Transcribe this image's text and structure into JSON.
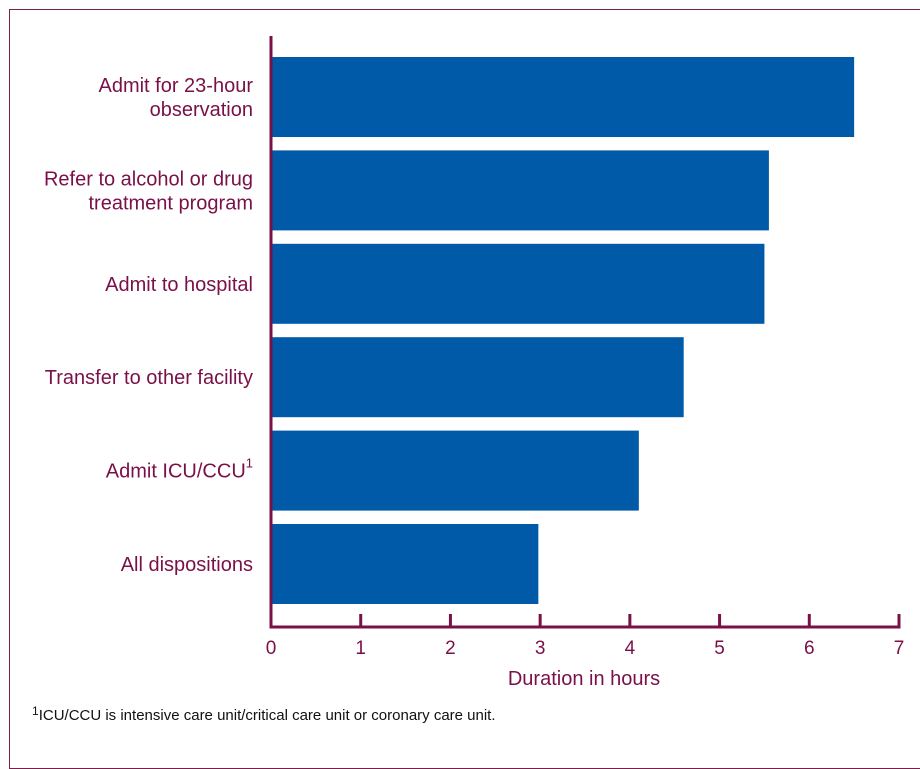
{
  "chart_data": {
    "type": "bar",
    "orientation": "horizontal",
    "categories": [
      {
        "lines": [
          "Admit for 23-hour",
          "observation"
        ],
        "sup": ""
      },
      {
        "lines": [
          "Refer to alcohol or drug",
          "treatment program"
        ],
        "sup": ""
      },
      {
        "lines": [
          "Admit to hospital"
        ],
        "sup": ""
      },
      {
        "lines": [
          "Transfer to other facility"
        ],
        "sup": ""
      },
      {
        "lines": [
          "Admit ICU/CCU"
        ],
        "sup": "1"
      },
      {
        "lines": [
          "All dispositions"
        ],
        "sup": ""
      }
    ],
    "values": [
      6.5,
      5.55,
      5.5,
      4.6,
      4.1,
      2.98
    ],
    "xlabel": "Duration in hours",
    "xlim": [
      0,
      7
    ],
    "xticks": [
      "0",
      "1",
      "2",
      "3",
      "4",
      "5",
      "6",
      "7"
    ],
    "grid": false,
    "colors": {
      "bar": "#005aa8",
      "axis": "#7a1048",
      "text": "#7a1048"
    }
  },
  "footnote": {
    "mark": "1",
    "text": "ICU/CCU is intensive care unit/critical care unit or coronary care unit."
  }
}
